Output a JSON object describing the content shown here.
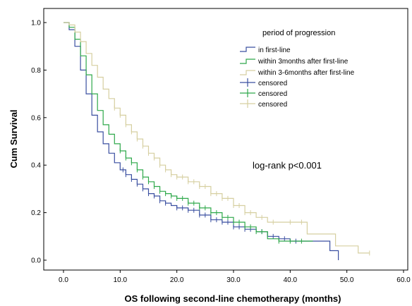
{
  "chart_data": {
    "type": "line",
    "xlabel": "OS following second-line chemotherapy (months)",
    "ylabel": "Cum Survival",
    "xlim": [
      0,
      60
    ],
    "ylim": [
      0,
      1.0
    ],
    "x_ticks": [
      "0.0",
      "10.0",
      "20.0",
      "30.0",
      "40.0",
      "50.0",
      "60.0"
    ],
    "y_ticks": [
      "0.0",
      "0.2",
      "0.4",
      "0.6",
      "0.8",
      "1.0"
    ],
    "grid": false,
    "legend": {
      "title": "period of progression",
      "placement": "top-right",
      "entries": [
        "in first-line",
        "within 3months after first-line",
        "within 3-6months after first-line",
        "censored",
        "censored",
        "censored"
      ]
    },
    "annotation": "log-rank p<0.001",
    "colors": {
      "in_first_line": "#3a4fa0",
      "within_3_months": "#2ea84a",
      "within_3_6_months": "#d6cfa0"
    },
    "series": [
      {
        "name": "in first-line",
        "color": "#3a4fa0",
        "x": [
          0,
          1,
          2,
          3,
          4,
          5,
          6,
          7,
          8,
          9,
          10,
          11,
          12,
          13,
          14,
          15,
          16,
          17,
          18,
          19,
          20,
          22,
          24,
          26,
          28,
          30,
          32,
          34,
          36,
          38,
          40,
          42,
          44,
          46,
          47,
          48.5
        ],
        "y": [
          1.0,
          0.97,
          0.9,
          0.8,
          0.7,
          0.61,
          0.54,
          0.49,
          0.45,
          0.41,
          0.38,
          0.36,
          0.34,
          0.32,
          0.3,
          0.28,
          0.27,
          0.25,
          0.24,
          0.23,
          0.22,
          0.21,
          0.19,
          0.17,
          0.16,
          0.14,
          0.13,
          0.12,
          0.1,
          0.09,
          0.08,
          0.08,
          0.08,
          0.08,
          0.04,
          0.0
        ],
        "censored_x": [
          10.5,
          11,
          12,
          13,
          14,
          15,
          16,
          17,
          18,
          20,
          21,
          22,
          23,
          24,
          25,
          26,
          27,
          28,
          29,
          30,
          31,
          32,
          33,
          35,
          37,
          39,
          41
        ]
      },
      {
        "name": "within 3months after first-line",
        "color": "#2ea84a",
        "x": [
          0,
          1,
          2,
          3,
          4,
          5,
          6,
          7,
          8,
          9,
          10,
          11,
          12,
          13,
          14,
          15,
          16,
          17,
          18,
          19,
          20,
          22,
          24,
          26,
          28,
          30,
          32,
          34,
          36,
          38,
          40,
          42,
          44
        ],
        "y": [
          1.0,
          0.98,
          0.93,
          0.86,
          0.78,
          0.7,
          0.63,
          0.57,
          0.53,
          0.49,
          0.46,
          0.43,
          0.41,
          0.38,
          0.35,
          0.33,
          0.31,
          0.29,
          0.28,
          0.27,
          0.26,
          0.24,
          0.22,
          0.2,
          0.18,
          0.16,
          0.14,
          0.12,
          0.09,
          0.08,
          0.08,
          0.08,
          0.08
        ],
        "censored_x": [
          10,
          11,
          12,
          13,
          14,
          15,
          16,
          17,
          18,
          19,
          20,
          21,
          22,
          23,
          24,
          25,
          26,
          27,
          28,
          29,
          30,
          31,
          32,
          33,
          34,
          35,
          38,
          40,
          42
        ]
      },
      {
        "name": "within 3-6months after first-line",
        "color": "#d6cfa0",
        "x": [
          0,
          1,
          2,
          3,
          4,
          5,
          6,
          7,
          8,
          9,
          10,
          11,
          12,
          13,
          14,
          15,
          16,
          17,
          18,
          19,
          20,
          22,
          24,
          26,
          28,
          30,
          32,
          34,
          36,
          38,
          40,
          42,
          43,
          44,
          46,
          48,
          50,
          52,
          54
        ],
        "y": [
          1.0,
          0.99,
          0.96,
          0.92,
          0.87,
          0.82,
          0.77,
          0.72,
          0.68,
          0.64,
          0.61,
          0.57,
          0.54,
          0.51,
          0.48,
          0.45,
          0.43,
          0.4,
          0.38,
          0.36,
          0.35,
          0.33,
          0.31,
          0.28,
          0.26,
          0.23,
          0.2,
          0.18,
          0.16,
          0.16,
          0.16,
          0.16,
          0.11,
          0.11,
          0.11,
          0.06,
          0.06,
          0.03,
          0.03
        ],
        "censored_x": [
          9,
          10,
          11,
          12,
          13,
          14,
          15,
          16,
          17,
          18,
          19,
          20,
          21,
          22,
          23,
          24,
          25,
          26,
          27,
          28,
          29,
          30,
          31,
          32,
          33,
          35,
          37,
          40,
          42,
          54
        ]
      }
    ]
  }
}
